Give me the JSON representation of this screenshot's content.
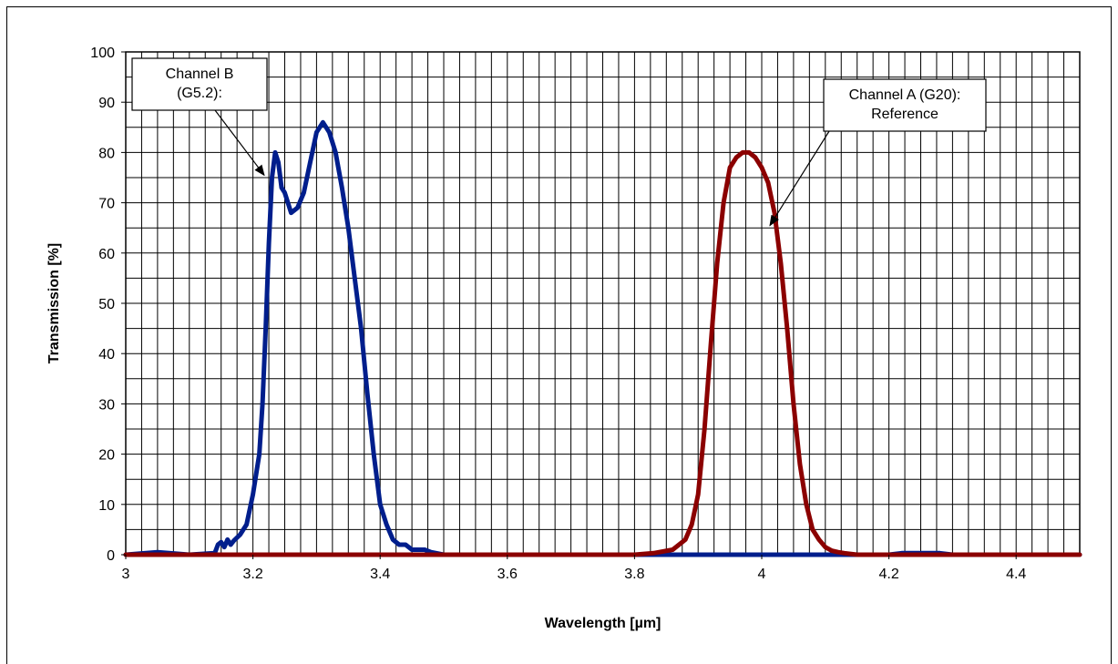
{
  "chart_data": {
    "type": "line",
    "xlabel": "Wavelength [µm]",
    "ylabel": "Transmission [%]",
    "xlim": [
      3,
      4.5
    ],
    "ylim": [
      0,
      100
    ],
    "x_ticks": [
      3,
      3.2,
      3.4,
      3.6,
      3.8,
      4,
      4.2,
      4.4
    ],
    "x_tick_labels": [
      "3",
      "3.2",
      "3.4",
      "3.6",
      "3.8",
      "4",
      "4.2",
      "4.4"
    ],
    "y_ticks": [
      0,
      10,
      20,
      30,
      40,
      50,
      60,
      70,
      80,
      90,
      100
    ],
    "y_tick_labels": [
      "0",
      "10",
      "20",
      "30",
      "40",
      "50",
      "60",
      "70",
      "80",
      "90",
      "100"
    ],
    "grid": true,
    "series": [
      {
        "key": "channel_b",
        "color": "#001E8C",
        "points": [
          [
            3.0,
            0
          ],
          [
            3.05,
            0.5
          ],
          [
            3.1,
            0
          ],
          [
            3.14,
            0.3
          ],
          [
            3.145,
            2
          ],
          [
            3.15,
            2.5
          ],
          [
            3.155,
            1.5
          ],
          [
            3.16,
            3
          ],
          [
            3.165,
            2
          ],
          [
            3.17,
            2.8
          ],
          [
            3.18,
            4
          ],
          [
            3.19,
            6
          ],
          [
            3.2,
            12
          ],
          [
            3.21,
            20
          ],
          [
            3.215,
            30
          ],
          [
            3.22,
            45
          ],
          [
            3.225,
            62
          ],
          [
            3.23,
            75
          ],
          [
            3.235,
            80
          ],
          [
            3.24,
            78
          ],
          [
            3.245,
            73
          ],
          [
            3.25,
            72
          ],
          [
            3.26,
            68
          ],
          [
            3.27,
            69
          ],
          [
            3.28,
            72
          ],
          [
            3.29,
            78
          ],
          [
            3.3,
            84
          ],
          [
            3.31,
            86
          ],
          [
            3.32,
            84
          ],
          [
            3.33,
            80
          ],
          [
            3.34,
            73
          ],
          [
            3.35,
            65
          ],
          [
            3.36,
            55
          ],
          [
            3.37,
            45
          ],
          [
            3.38,
            32
          ],
          [
            3.39,
            20
          ],
          [
            3.4,
            10
          ],
          [
            3.41,
            6
          ],
          [
            3.42,
            3
          ],
          [
            3.43,
            2
          ],
          [
            3.44,
            2
          ],
          [
            3.45,
            1
          ],
          [
            3.46,
            1
          ],
          [
            3.47,
            1
          ],
          [
            3.48,
            0.5
          ],
          [
            3.5,
            0
          ],
          [
            3.85,
            0
          ],
          [
            4.0,
            0
          ],
          [
            4.1,
            0
          ],
          [
            4.2,
            0
          ],
          [
            4.22,
            0.3
          ],
          [
            4.24,
            0.3
          ],
          [
            4.26,
            0.3
          ],
          [
            4.28,
            0.3
          ],
          [
            4.3,
            0
          ],
          [
            4.5,
            0
          ]
        ]
      },
      {
        "key": "channel_a",
        "color": "#8B0000",
        "points": [
          [
            3.0,
            0
          ],
          [
            3.5,
            0
          ],
          [
            3.8,
            0
          ],
          [
            3.83,
            0.3
          ],
          [
            3.86,
            1
          ],
          [
            3.88,
            3
          ],
          [
            3.89,
            6
          ],
          [
            3.9,
            12
          ],
          [
            3.91,
            25
          ],
          [
            3.92,
            42
          ],
          [
            3.93,
            58
          ],
          [
            3.94,
            70
          ],
          [
            3.95,
            77
          ],
          [
            3.96,
            79
          ],
          [
            3.97,
            80
          ],
          [
            3.98,
            80
          ],
          [
            3.99,
            79
          ],
          [
            4.0,
            77
          ],
          [
            4.01,
            74
          ],
          [
            4.02,
            68
          ],
          [
            4.03,
            58
          ],
          [
            4.04,
            45
          ],
          [
            4.05,
            30
          ],
          [
            4.06,
            18
          ],
          [
            4.07,
            10
          ],
          [
            4.08,
            5
          ],
          [
            4.09,
            3
          ],
          [
            4.1,
            1.5
          ],
          [
            4.11,
            0.8
          ],
          [
            4.12,
            0.5
          ],
          [
            4.13,
            0.3
          ],
          [
            4.15,
            0
          ],
          [
            4.5,
            0
          ]
        ]
      }
    ],
    "annotations": [
      {
        "key": "channel_b_label",
        "lines": [
          "Channel B",
          "(G5.2):"
        ],
        "target": [
          3.235,
          78
        ]
      },
      {
        "key": "channel_a_label",
        "lines": [
          "Channel A (G20):",
          "Reference"
        ],
        "target": [
          4.03,
          68
        ]
      }
    ]
  }
}
